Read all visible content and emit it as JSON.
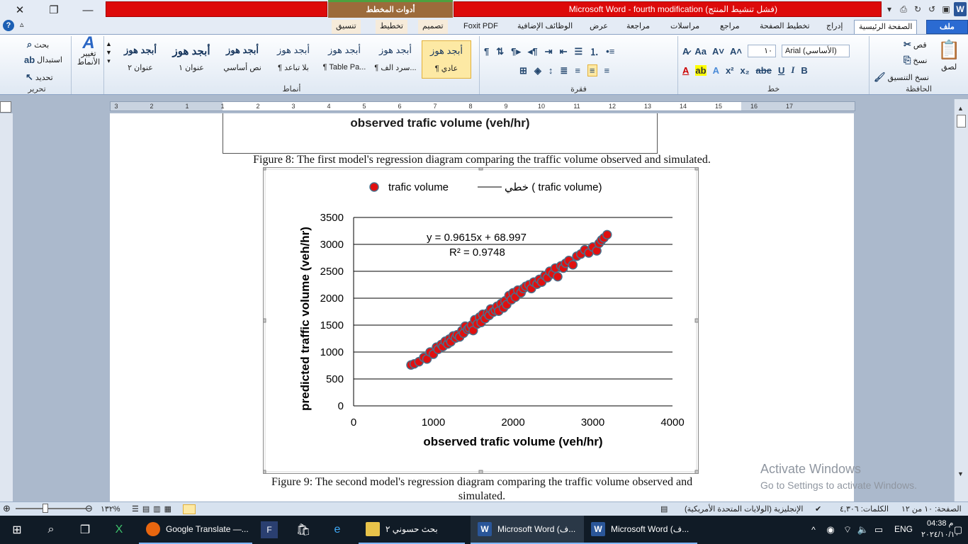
{
  "window": {
    "title": "Microsoft Word  -  fourth modification (فشل تنشيط المنتج)",
    "contextual_tools": "أدوات المخطط",
    "close_glyph": "✕",
    "restore_glyph": "❐",
    "minimize_glyph": "—"
  },
  "tabs": {
    "file": "ملف",
    "home": "الصفحة الرئيسية",
    "insert": "إدراج",
    "page_layout": "تخطيط الصفحة",
    "references": "مراجع",
    "mailings": "مراسلات",
    "review": "مراجعة",
    "view": "عرض",
    "addins": "الوظائف الإضافية",
    "foxit": "Foxit PDF",
    "design": "تصميم",
    "layout": "تخطيط",
    "format": "تنسيق"
  },
  "ribbon": {
    "clipboard": {
      "label": "الحافظة",
      "paste": "لصق",
      "cut": "قص",
      "copy": "نسخ",
      "format_painter": "نسخ التنسيق"
    },
    "font": {
      "label": "خط",
      "font_name": "Arial (الأساسي)",
      "font_size": "١٠",
      "bold": "B",
      "italic": "I",
      "underline": "U",
      "strike": "abe",
      "subscript": "x₂",
      "superscript": "x²"
    },
    "paragraph": {
      "label": "فقرة"
    },
    "styles": {
      "label": "أنماط",
      "change_styles": "تغيير الأنماط",
      "items": [
        {
          "sample": "أبجد هوز",
          "name": "¶ عادي"
        },
        {
          "sample": "أبجد هوز",
          "name": "¶ سرد الف..."
        },
        {
          "sample": "أبجد هوز",
          "name": "¶ Table Pa..."
        },
        {
          "sample": "أبجد هوز",
          "name": "¶ بلا تباعد"
        },
        {
          "sample": "أبجد هوز",
          "name": "نص أساسي"
        },
        {
          "sample": "أبجد هوز",
          "name": "عنوان ١"
        },
        {
          "sample": "أبجد هوز",
          "name": "عنوان ٢"
        }
      ]
    },
    "editing": {
      "label": "تحرير",
      "find": "بحث",
      "replace": "استبدال",
      "select": "تحديد"
    }
  },
  "ruler": {
    "numbers": [
      "3",
      "2",
      "1",
      "1",
      "2",
      "3",
      "4",
      "5",
      "6",
      "7",
      "8",
      "9",
      "10",
      "11",
      "12",
      "13",
      "14",
      "15",
      "16",
      "17"
    ]
  },
  "document": {
    "prev_chart_ticks": [
      "0",
      "1000",
      "2000",
      "3000",
      "4000"
    ],
    "prev_chart_xlabel": "observed trafic volume (veh/hr)",
    "caption8": "Figure 8:  The first model's regression diagram comparing the traffic volume observed and simulated.",
    "caption9_line1": "Figure 9: The second model's regression diagram comparing the traffic volume observed and",
    "caption9_line2": "simulated."
  },
  "chart_data": {
    "type": "scatter",
    "title": "",
    "xlabel": "observed trafic volume (veh/hr)",
    "ylabel": "predicted traffic volume (veh/hr)",
    "xlim": [
      0,
      4000
    ],
    "ylim": [
      0,
      3500
    ],
    "xticks": [
      0,
      1000,
      2000,
      3000,
      4000
    ],
    "yticks": [
      0,
      500,
      1000,
      1500,
      2000,
      2500,
      3000,
      3500
    ],
    "grid": "horizontal",
    "legend": {
      "placement": "top",
      "entries": [
        "trafic volume",
        "خطي ( trafic volume)"
      ]
    },
    "trendline": {
      "slope": 0.9615,
      "intercept": 68.997,
      "equation": "y = 0.9615x + 68.997",
      "r2": "R² = 0.9748"
    },
    "series": [
      {
        "name": "trafic volume",
        "color": "#e01010",
        "x": [
          720,
          760,
          820,
          880,
          920,
          960,
          1000,
          1040,
          1060,
          1100,
          1120,
          1150,
          1180,
          1200,
          1220,
          1250,
          1280,
          1300,
          1330,
          1360,
          1380,
          1400,
          1430,
          1450,
          1480,
          1500,
          1520,
          1550,
          1580,
          1600,
          1620,
          1650,
          1680,
          1700,
          1720,
          1750,
          1780,
          1800,
          1820,
          1850,
          1880,
          1900,
          1920,
          1950,
          1980,
          2000,
          2030,
          2060,
          2100,
          2130,
          2160,
          2200,
          2230,
          2260,
          2300,
          2330,
          2360,
          2400,
          2430,
          2460,
          2500,
          2530,
          2560,
          2600,
          2630,
          2660,
          2700,
          2750,
          2800,
          2850,
          2900,
          2950,
          3000,
          3050,
          3080,
          3110,
          3140,
          3180
        ],
        "y": [
          760,
          780,
          820,
          900,
          870,
          1000,
          960,
          1090,
          1050,
          1140,
          1100,
          1200,
          1150,
          1240,
          1190,
          1300,
          1260,
          1320,
          1280,
          1400,
          1350,
          1480,
          1420,
          1450,
          1500,
          1400,
          1600,
          1520,
          1650,
          1550,
          1700,
          1620,
          1720,
          1680,
          1800,
          1740,
          1780,
          1850,
          1760,
          1900,
          1820,
          1950,
          1880,
          2050,
          1970,
          2100,
          2020,
          2150,
          2100,
          2180,
          2220,
          2250,
          2180,
          2300,
          2260,
          2350,
          2300,
          2420,
          2380,
          2500,
          2450,
          2560,
          2400,
          2600,
          2560,
          2650,
          2700,
          2620,
          2780,
          2820,
          2900,
          2840,
          2950,
          2880,
          3020,
          3080,
          3120,
          3180
        ]
      }
    ]
  },
  "watermark": {
    "line1": "Activate Windows",
    "line2": "Go to Settings to activate Windows."
  },
  "status": {
    "page": "الصفحة: ١٠ من ١٢",
    "words": "الكلمات: ٤,٣٠٦",
    "language": "الإنجليزية (الولايات المتحدة الأمريكية)",
    "zoom": "١٣٢%"
  },
  "taskbar": {
    "apps": [
      "Google Translate —...",
      "بحث حسوني ٢",
      "Microsoft Word (ف...",
      "Microsoft Word (ف..."
    ],
    "lang": "ENG",
    "time": "04:38 م",
    "date": "٢٠٢٤/١٠/١٠"
  }
}
